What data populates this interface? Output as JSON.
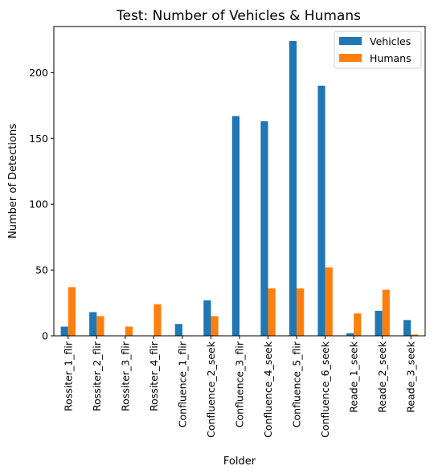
{
  "chart_data": {
    "type": "bar",
    "title": "Test: Number of Vehicles & Humans",
    "xlabel": "Folder",
    "ylabel": "Number of Detections",
    "categories": [
      "Rossiter_1_flir",
      "Rossiter_2_flir",
      "Rossiter_3_flir",
      "Rossiter_4_flir",
      "Confluence_1_flir",
      "Confluence_2_seek",
      "Confluence_3_flir",
      "Confluence_4_seek",
      "Confluence_5_flir",
      "Confluence_6_seek",
      "Reade_1_seek",
      "Reade_2_seek",
      "Reade_3_seek"
    ],
    "series": [
      {
        "name": "Vehicles",
        "color": "#1f77b4",
        "values": [
          7,
          18,
          0,
          0,
          9,
          27,
          167,
          163,
          224,
          190,
          2,
          19,
          12
        ]
      },
      {
        "name": "Humans",
        "color": "#ff7f0e",
        "values": [
          37,
          15,
          7,
          24,
          0,
          15,
          0,
          36,
          36,
          52,
          17,
          35,
          1
        ]
      }
    ],
    "ylim": [
      0,
      235
    ],
    "yticks": [
      0,
      50,
      100,
      150,
      200
    ],
    "grid": false,
    "legend_position": "top-right"
  }
}
